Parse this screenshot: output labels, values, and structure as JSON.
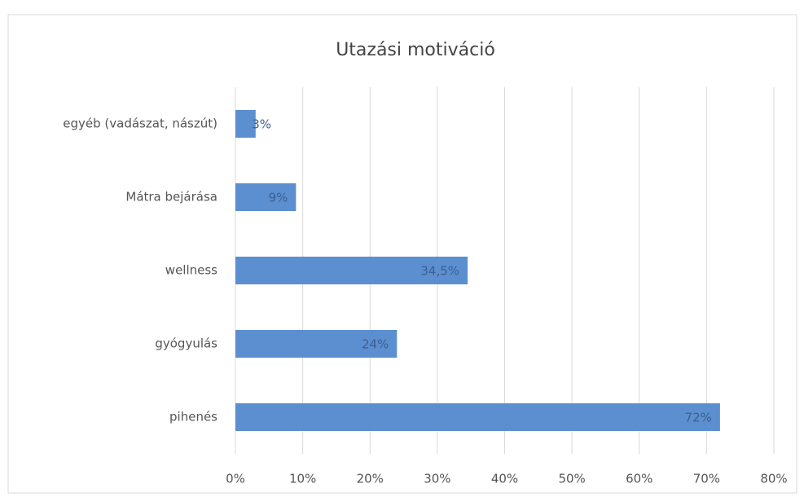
{
  "chart_data": {
    "type": "bar",
    "orientation": "horizontal",
    "title": "Utazási motiváció",
    "categories": [
      "egyéb (vadászat, nászút)",
      "Mátra bejárása",
      "wellness",
      "gyógyulás",
      "pihenés"
    ],
    "values": [
      3,
      9,
      34.5,
      24,
      72
    ],
    "value_labels": [
      "3%",
      "9%",
      "34,5%",
      "24%",
      "72%"
    ],
    "color": "#5b8fd0",
    "xlim": [
      0,
      80
    ],
    "xticks": [
      {
        "value": 0,
        "label": "0%"
      },
      {
        "value": 10,
        "label": "10%"
      },
      {
        "value": 20,
        "label": "20%"
      },
      {
        "value": 30,
        "label": "30%"
      },
      {
        "value": 40,
        "label": "40%"
      },
      {
        "value": 50,
        "label": "50%"
      },
      {
        "value": 60,
        "label": "60%"
      },
      {
        "value": 70,
        "label": "70%"
      },
      {
        "value": 80,
        "label": "80%"
      }
    ],
    "grid": true
  }
}
